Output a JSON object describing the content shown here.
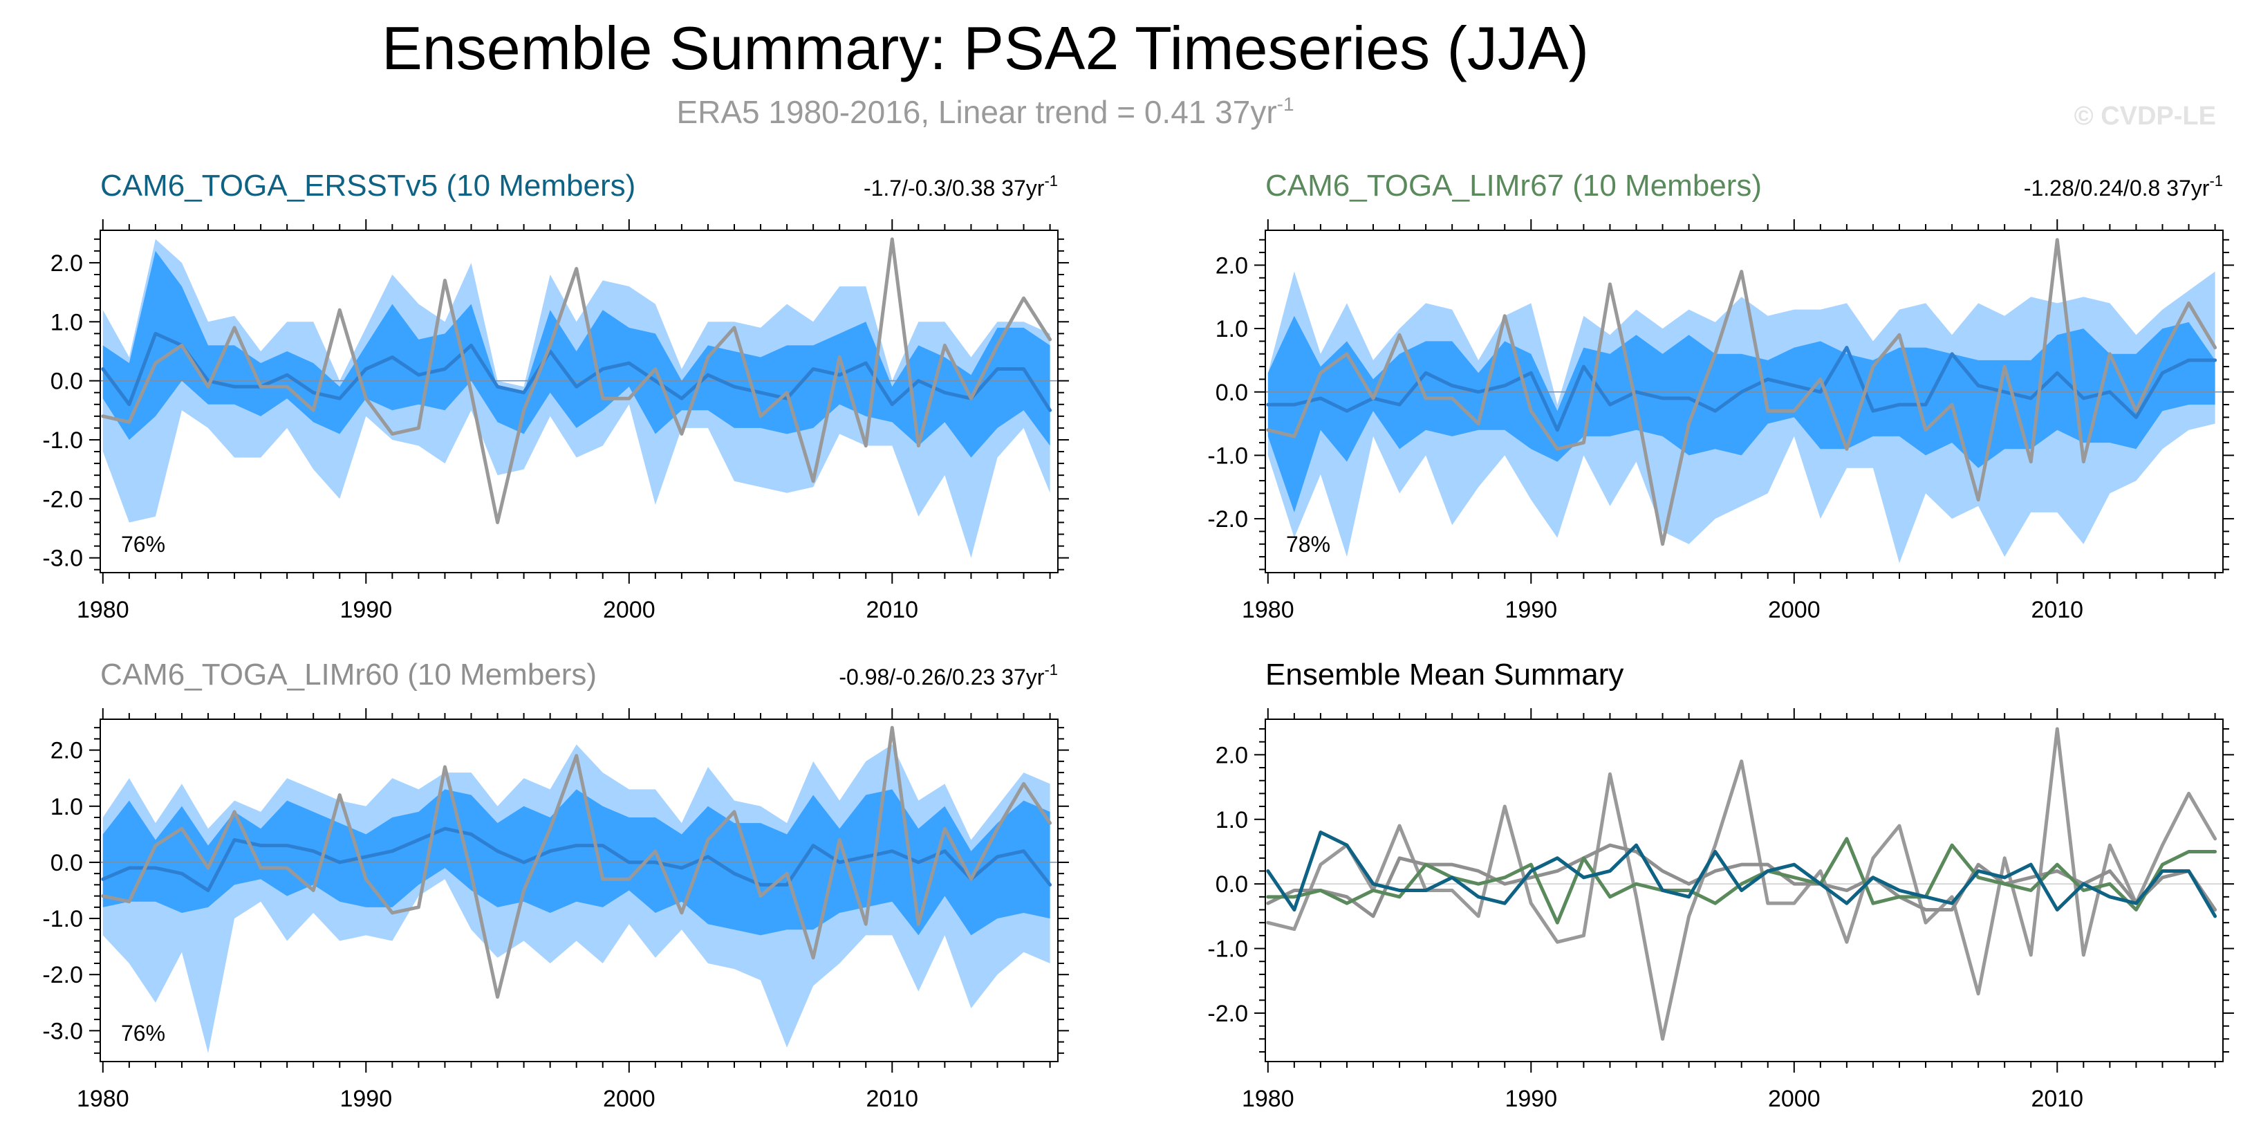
{
  "figure": {
    "title": "Ensemble Summary: PSA2 Timeseries (JJA)",
    "subtitle_main": "ERA5 1980-2016, Linear trend = 0.41 37yr",
    "subtitle_sup": "-1",
    "watermark": "© CVDP-LE"
  },
  "colors": {
    "spread_outer": "#a6d3ff",
    "spread_inner": "#3aa2ff",
    "ens_mean": "#2d7fd2",
    "obs": "#999999",
    "ersst": "#0e6284",
    "limr67": "#5a8a5c",
    "limr60": "#8f8f8f"
  },
  "chart_data": [
    {
      "id": "p1",
      "type": "line",
      "title": "CAM6_TOGA_ERSSTv5 (10 Members)",
      "title_color": "#0e6284",
      "stat_main": "-1.7/-0.3/0.38 37yr",
      "stat_sup": "-1",
      "pct_label": "76%",
      "x": [
        1980,
        1981,
        1982,
        1983,
        1984,
        1985,
        1986,
        1987,
        1988,
        1989,
        1990,
        1991,
        1992,
        1993,
        1994,
        1995,
        1996,
        1997,
        1998,
        1999,
        2000,
        2001,
        2002,
        2003,
        2004,
        2005,
        2006,
        2007,
        2008,
        2009,
        2010,
        2011,
        2012,
        2013,
        2014,
        2015,
        2016
      ],
      "xlim": [
        1979.9,
        2016.3
      ],
      "ylim": [
        -3.25,
        2.55
      ],
      "yticks": [
        2.0,
        1.0,
        0.0,
        -1.0,
        -2.0,
        -3.0
      ],
      "ytick_labels": [
        "2.0",
        "1.0",
        "0.0",
        "-1.0",
        "-2.0",
        "-3.0"
      ],
      "xticks": [
        1980,
        1990,
        2000,
        2010
      ],
      "xtick_labels": [
        "1980",
        "1990",
        "2000",
        "2010"
      ],
      "outer_hi": [
        1.2,
        0.4,
        2.4,
        2.0,
        1.0,
        1.1,
        0.5,
        1.0,
        1.0,
        0.0,
        0.9,
        1.8,
        1.3,
        1.0,
        2.0,
        0.0,
        -0.1,
        1.8,
        1.0,
        1.7,
        1.6,
        1.3,
        0.2,
        1.0,
        1.0,
        0.9,
        1.3,
        1.0,
        1.6,
        1.6,
        0.0,
        1.0,
        1.0,
        0.4,
        1.0,
        1.0,
        0.8
      ],
      "outer_lo": [
        -1.2,
        -2.4,
        -2.3,
        -0.5,
        -0.8,
        -1.3,
        -1.3,
        -0.8,
        -1.5,
        -2.0,
        -0.6,
        -1.0,
        -1.1,
        -1.4,
        -0.5,
        -1.6,
        -1.5,
        -0.6,
        -1.3,
        -1.1,
        -0.4,
        -2.1,
        -0.8,
        -0.8,
        -1.7,
        -1.8,
        -1.9,
        -1.8,
        -0.9,
        -1.1,
        -1.1,
        -2.3,
        -1.6,
        -3.0,
        -1.3,
        -0.8,
        -1.9
      ],
      "inner_hi": [
        0.6,
        0.3,
        2.2,
        1.6,
        0.6,
        0.6,
        0.3,
        0.5,
        0.3,
        -0.1,
        0.6,
        1.3,
        0.7,
        0.8,
        1.3,
        -0.1,
        -0.2,
        1.2,
        0.5,
        1.2,
        0.9,
        0.8,
        0.0,
        0.6,
        0.5,
        0.4,
        0.6,
        0.6,
        0.8,
        1.0,
        -0.1,
        0.6,
        0.4,
        0.1,
        0.9,
        0.9,
        0.6
      ],
      "inner_lo": [
        -0.3,
        -1.0,
        -0.6,
        0.0,
        -0.4,
        -0.4,
        -0.6,
        -0.3,
        -0.7,
        -0.9,
        -0.3,
        -0.5,
        -0.4,
        -0.5,
        0.0,
        -0.7,
        -0.9,
        -0.2,
        -0.8,
        -0.5,
        -0.1,
        -0.9,
        -0.5,
        -0.5,
        -0.8,
        -0.8,
        -0.9,
        -0.8,
        -0.4,
        -0.6,
        -0.7,
        -1.1,
        -0.7,
        -1.3,
        -0.8,
        -0.5,
        -1.1
      ],
      "mean": [
        0.2,
        -0.4,
        0.8,
        0.6,
        0.0,
        -0.1,
        -0.1,
        0.1,
        -0.2,
        -0.3,
        0.2,
        0.4,
        0.1,
        0.2,
        0.6,
        -0.1,
        -0.2,
        0.5,
        -0.1,
        0.2,
        0.3,
        0.0,
        -0.3,
        0.1,
        -0.1,
        -0.2,
        -0.3,
        0.2,
        0.1,
        0.3,
        -0.4,
        0.0,
        -0.2,
        -0.3,
        0.2,
        0.2,
        -0.5
      ],
      "obs": [
        -0.6,
        -0.7,
        0.3,
        0.6,
        -0.1,
        0.9,
        -0.1,
        -0.1,
        -0.5,
        1.2,
        -0.3,
        -0.9,
        -0.8,
        1.7,
        -0.2,
        -2.4,
        -0.5,
        0.6,
        1.9,
        -0.3,
        -0.3,
        0.2,
        -0.9,
        0.4,
        0.9,
        -0.6,
        -0.2,
        -1.7,
        0.4,
        -1.1,
        2.4,
        -1.1,
        0.6,
        -0.3,
        0.6,
        1.4,
        0.7
      ]
    },
    {
      "id": "p2",
      "type": "line",
      "title": "CAM6_TOGA_LIMr67 (10 Members)",
      "title_color": "#5a8a5c",
      "stat_main": "-1.28/0.24/0.8 37yr",
      "stat_sup": "-1",
      "pct_label": "78%",
      "x": [
        1980,
        1981,
        1982,
        1983,
        1984,
        1985,
        1986,
        1987,
        1988,
        1989,
        1990,
        1991,
        1992,
        1993,
        1994,
        1995,
        1996,
        1997,
        1998,
        1999,
        2000,
        2001,
        2002,
        2003,
        2004,
        2005,
        2006,
        2007,
        2008,
        2009,
        2010,
        2011,
        2012,
        2013,
        2014,
        2015,
        2016
      ],
      "xlim": [
        1979.9,
        2016.3
      ],
      "ylim": [
        -2.85,
        2.55
      ],
      "yticks": [
        2.0,
        1.0,
        0.0,
        -1.0,
        -2.0
      ],
      "ytick_labels": [
        "2.0",
        "1.0",
        "0.0",
        "-1.0",
        "-2.0"
      ],
      "xticks": [
        1980,
        1990,
        2000,
        2010
      ],
      "xtick_labels": [
        "1980",
        "1990",
        "2000",
        "2010"
      ],
      "outer_hi": [
        0.3,
        1.9,
        0.6,
        1.4,
        0.5,
        1.0,
        1.4,
        1.3,
        0.5,
        1.2,
        1.4,
        -0.2,
        1.2,
        0.9,
        1.3,
        1.0,
        1.3,
        1.1,
        1.5,
        1.2,
        1.3,
        1.3,
        1.4,
        0.8,
        1.3,
        1.4,
        0.9,
        1.4,
        1.2,
        1.5,
        1.4,
        1.5,
        1.4,
        0.9,
        1.3,
        1.6,
        1.9
      ],
      "outer_lo": [
        -1.0,
        -2.3,
        -1.3,
        -2.6,
        -0.7,
        -1.6,
        -1.0,
        -2.1,
        -1.5,
        -1.0,
        -1.7,
        -2.3,
        -1.0,
        -1.8,
        -1.1,
        -2.2,
        -2.4,
        -2.0,
        -1.8,
        -1.6,
        -0.7,
        -2.0,
        -1.2,
        -1.2,
        -2.7,
        -1.6,
        -2.0,
        -1.8,
        -2.6,
        -1.9,
        -1.9,
        -2.4,
        -1.6,
        -1.4,
        -0.9,
        -0.6,
        -0.5
      ],
      "inner_hi": [
        0.3,
        1.2,
        0.4,
        0.8,
        0.2,
        0.6,
        0.8,
        0.8,
        0.3,
        0.8,
        0.6,
        -0.3,
        0.7,
        0.6,
        0.9,
        0.6,
        0.9,
        0.6,
        0.6,
        0.5,
        0.7,
        0.8,
        0.6,
        0.5,
        0.7,
        0.7,
        0.6,
        0.5,
        0.5,
        0.5,
        0.9,
        1.0,
        0.6,
        0.6,
        1.0,
        1.1,
        0.5
      ],
      "inner_lo": [
        -0.7,
        -1.9,
        -0.6,
        -1.1,
        -0.3,
        -0.9,
        -0.6,
        -0.7,
        -0.6,
        -0.6,
        -0.9,
        -1.1,
        -0.7,
        -0.7,
        -0.6,
        -0.7,
        -1.0,
        -0.9,
        -1.0,
        -0.5,
        -0.4,
        -0.9,
        -0.9,
        -0.7,
        -0.7,
        -1.0,
        -0.8,
        -1.2,
        -0.9,
        -0.9,
        -0.6,
        -0.8,
        -0.8,
        -0.9,
        -0.3,
        -0.2,
        -0.2
      ],
      "mean": [
        -0.2,
        -0.2,
        -0.1,
        -0.3,
        -0.1,
        -0.2,
        0.3,
        0.1,
        0.0,
        0.1,
        0.3,
        -0.6,
        0.4,
        -0.2,
        0.0,
        -0.1,
        -0.1,
        -0.3,
        0.0,
        0.2,
        0.1,
        0.0,
        0.7,
        -0.3,
        -0.2,
        -0.2,
        0.6,
        0.1,
        0.0,
        -0.1,
        0.3,
        -0.1,
        0.0,
        -0.4,
        0.3,
        0.5,
        0.5
      ],
      "obs": [
        -0.6,
        -0.7,
        0.3,
        0.6,
        -0.1,
        0.9,
        -0.1,
        -0.1,
        -0.5,
        1.2,
        -0.3,
        -0.9,
        -0.8,
        1.7,
        -0.2,
        -2.4,
        -0.5,
        0.6,
        1.9,
        -0.3,
        -0.3,
        0.2,
        -0.9,
        0.4,
        0.9,
        -0.6,
        -0.2,
        -1.7,
        0.4,
        -1.1,
        2.4,
        -1.1,
        0.6,
        -0.3,
        0.6,
        1.4,
        0.7
      ]
    },
    {
      "id": "p3",
      "type": "line",
      "title": "CAM6_TOGA_LIMr60 (10 Members)",
      "title_color": "#8f8f8f",
      "stat_main": "-0.98/-0.26/0.23 37yr",
      "stat_sup": "-1",
      "pct_label": "76%",
      "x": [
        1980,
        1981,
        1982,
        1983,
        1984,
        1985,
        1986,
        1987,
        1988,
        1989,
        1990,
        1991,
        1992,
        1993,
        1994,
        1995,
        1996,
        1997,
        1998,
        1999,
        2000,
        2001,
        2002,
        2003,
        2004,
        2005,
        2006,
        2007,
        2008,
        2009,
        2010,
        2011,
        2012,
        2013,
        2014,
        2015,
        2016
      ],
      "xlim": [
        1979.9,
        2016.3
      ],
      "ylim": [
        -3.55,
        2.55
      ],
      "yticks": [
        2.0,
        1.0,
        0.0,
        -1.0,
        -2.0,
        -3.0
      ],
      "ytick_labels": [
        "2.0",
        "1.0",
        "0.0",
        "-1.0",
        "-2.0",
        "-3.0"
      ],
      "xticks": [
        1980,
        1990,
        2000,
        2010
      ],
      "xtick_labels": [
        "1980",
        "1990",
        "2000",
        "2010"
      ],
      "outer_hi": [
        0.8,
        1.5,
        0.7,
        1.4,
        0.6,
        1.1,
        0.9,
        1.5,
        1.3,
        1.1,
        1.0,
        1.5,
        1.3,
        1.6,
        1.6,
        1.0,
        1.5,
        1.3,
        2.1,
        1.6,
        1.3,
        1.3,
        0.7,
        1.7,
        1.1,
        1.0,
        0.7,
        1.8,
        1.1,
        1.8,
        2.1,
        1.1,
        1.4,
        0.4,
        1.0,
        1.6,
        1.4
      ],
      "outer_lo": [
        -1.3,
        -1.8,
        -2.5,
        -1.6,
        -3.4,
        -1.0,
        -0.7,
        -1.4,
        -0.9,
        -1.4,
        -1.3,
        -1.4,
        -0.6,
        -0.3,
        -1.2,
        -1.7,
        -1.4,
        -1.8,
        -1.4,
        -1.8,
        -1.1,
        -1.7,
        -1.2,
        -1.8,
        -1.9,
        -2.1,
        -3.3,
        -2.2,
        -1.8,
        -1.3,
        -1.3,
        -2.3,
        -1.3,
        -2.6,
        -2.0,
        -1.6,
        -1.8
      ],
      "inner_hi": [
        0.5,
        1.1,
        0.4,
        1.0,
        0.3,
        0.9,
        0.6,
        1.1,
        0.9,
        0.7,
        0.5,
        0.8,
        0.9,
        1.3,
        1.2,
        0.7,
        1.0,
        0.8,
        1.3,
        1.0,
        0.8,
        0.8,
        0.5,
        1.0,
        0.7,
        0.7,
        0.5,
        1.2,
        0.6,
        1.2,
        1.3,
        0.6,
        1.0,
        0.2,
        0.7,
        1.1,
        0.9
      ],
      "inner_lo": [
        -0.8,
        -0.7,
        -0.7,
        -0.9,
        -0.8,
        -0.4,
        -0.3,
        -0.6,
        -0.4,
        -0.7,
        -0.8,
        -0.8,
        -0.4,
        -0.1,
        -0.5,
        -0.8,
        -0.7,
        -0.9,
        -0.7,
        -0.8,
        -0.5,
        -0.9,
        -0.7,
        -1.1,
        -1.2,
        -1.3,
        -1.2,
        -1.2,
        -0.9,
        -0.8,
        -0.7,
        -1.3,
        -0.6,
        -1.3,
        -1.0,
        -0.9,
        -1.0
      ],
      "mean": [
        -0.3,
        -0.1,
        -0.1,
        -0.2,
        -0.5,
        0.4,
        0.3,
        0.3,
        0.2,
        0.0,
        0.1,
        0.2,
        0.4,
        0.6,
        0.5,
        0.2,
        0.0,
        0.2,
        0.3,
        0.3,
        0.0,
        0.0,
        -0.1,
        0.1,
        -0.2,
        -0.4,
        -0.4,
        0.3,
        0.0,
        0.1,
        0.2,
        0.0,
        0.2,
        -0.3,
        0.1,
        0.2,
        -0.4
      ],
      "obs": [
        -0.6,
        -0.7,
        0.3,
        0.6,
        -0.1,
        0.9,
        -0.1,
        -0.1,
        -0.5,
        1.2,
        -0.3,
        -0.9,
        -0.8,
        1.7,
        -0.2,
        -2.4,
        -0.5,
        0.6,
        1.9,
        -0.3,
        -0.3,
        0.2,
        -0.9,
        0.4,
        0.9,
        -0.6,
        -0.2,
        -1.7,
        0.4,
        -1.1,
        2.4,
        -1.1,
        0.6,
        -0.3,
        0.6,
        1.4,
        0.7
      ]
    },
    {
      "id": "p4",
      "type": "line",
      "title": "Ensemble Mean Summary",
      "title_color": "#000000",
      "x": [
        1980,
        1981,
        1982,
        1983,
        1984,
        1985,
        1986,
        1987,
        1988,
        1989,
        1990,
        1991,
        1992,
        1993,
        1994,
        1995,
        1996,
        1997,
        1998,
        1999,
        2000,
        2001,
        2002,
        2003,
        2004,
        2005,
        2006,
        2007,
        2008,
        2009,
        2010,
        2011,
        2012,
        2013,
        2014,
        2015,
        2016
      ],
      "xlim": [
        1979.9,
        2016.3
      ],
      "ylim": [
        -2.75,
        2.55
      ],
      "yticks": [
        2.0,
        1.0,
        0.0,
        -1.0,
        -2.0
      ],
      "ytick_labels": [
        "2.0",
        "1.0",
        "0.0",
        "-1.0",
        "-2.0"
      ],
      "xticks": [
        1980,
        1990,
        2000,
        2010
      ],
      "xtick_labels": [
        "1980",
        "1990",
        "2000",
        "2010"
      ],
      "series": [
        {
          "name": "ERA5",
          "color": "#999999",
          "values": [
            -0.6,
            -0.7,
            0.3,
            0.6,
            -0.1,
            0.9,
            -0.1,
            -0.1,
            -0.5,
            1.2,
            -0.3,
            -0.9,
            -0.8,
            1.7,
            -0.2,
            -2.4,
            -0.5,
            0.6,
            1.9,
            -0.3,
            -0.3,
            0.2,
            -0.9,
            0.4,
            0.9,
            -0.6,
            -0.2,
            -1.7,
            0.4,
            -1.1,
            2.4,
            -1.1,
            0.6,
            -0.3,
            0.6,
            1.4,
            0.7
          ]
        },
        {
          "name": "CAM6_TOGA_LIMr60",
          "color": "#8f8f8f",
          "values": [
            -0.3,
            -0.1,
            -0.1,
            -0.2,
            -0.5,
            0.4,
            0.3,
            0.3,
            0.2,
            0.0,
            0.1,
            0.2,
            0.4,
            0.6,
            0.5,
            0.2,
            0.0,
            0.2,
            0.3,
            0.3,
            0.0,
            0.0,
            -0.1,
            0.1,
            -0.2,
            -0.4,
            -0.4,
            0.3,
            0.0,
            0.1,
            0.2,
            0.0,
            0.2,
            -0.3,
            0.1,
            0.2,
            -0.4
          ]
        },
        {
          "name": "CAM6_TOGA_LIMr67",
          "color": "#5a8a5c",
          "values": [
            -0.2,
            -0.2,
            -0.1,
            -0.3,
            -0.1,
            -0.2,
            0.3,
            0.1,
            0.0,
            0.1,
            0.3,
            -0.6,
            0.4,
            -0.2,
            0.0,
            -0.1,
            -0.1,
            -0.3,
            0.0,
            0.2,
            0.1,
            0.0,
            0.7,
            -0.3,
            -0.2,
            -0.2,
            0.6,
            0.1,
            0.0,
            -0.1,
            0.3,
            -0.1,
            0.0,
            -0.4,
            0.3,
            0.5,
            0.5
          ]
        },
        {
          "name": "CAM6_TOGA_ERSSTv5",
          "color": "#0e6284",
          "values": [
            0.2,
            -0.4,
            0.8,
            0.6,
            0.0,
            -0.1,
            -0.1,
            0.1,
            -0.2,
            -0.3,
            0.2,
            0.4,
            0.1,
            0.2,
            0.6,
            -0.1,
            -0.2,
            0.5,
            -0.1,
            0.2,
            0.3,
            0.0,
            -0.3,
            0.1,
            -0.1,
            -0.2,
            -0.3,
            0.2,
            0.1,
            0.3,
            -0.4,
            0.0,
            -0.2,
            -0.3,
            0.2,
            0.2,
            -0.5
          ]
        }
      ]
    }
  ]
}
